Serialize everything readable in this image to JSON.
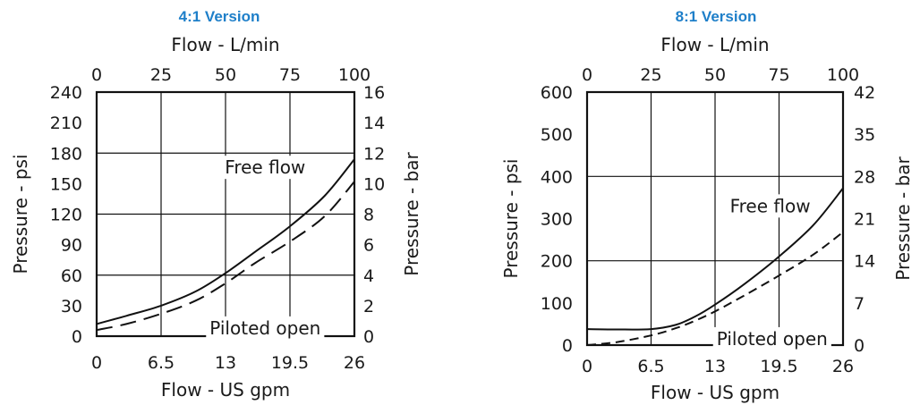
{
  "chart_data": [
    {
      "type": "line",
      "title": "4:1 Version",
      "xlabel": "Flow - US gpm",
      "ylabel": "Pressure - psi",
      "x2label": "Flow - L/min",
      "y2label": "Pressure - bar",
      "xlim": [
        0,
        26
      ],
      "ylim": [
        0,
        240
      ],
      "x2lim": [
        0,
        100
      ],
      "y2lim": [
        0,
        16
      ],
      "x_ticks": [
        "0",
        "6.5",
        "13",
        "19.5",
        "26"
      ],
      "y_ticks": [
        "0",
        "30",
        "60",
        "90",
        "120",
        "150",
        "180",
        "210",
        "240"
      ],
      "x2_ticks": [
        "0",
        "25",
        "50",
        "75",
        "100"
      ],
      "y2_ticks": [
        "0",
        "2",
        "4",
        "6",
        "8",
        "10",
        "12",
        "14",
        "16"
      ],
      "grid": true,
      "annotations": [
        {
          "text": "Free flow",
          "x": 17,
          "y": 166
        },
        {
          "text": "Piloted open",
          "x": 17,
          "y": 8
        }
      ],
      "series": [
        {
          "style": "solid",
          "x": [
            0,
            3,
            6.5,
            10,
            13,
            16,
            19.5,
            23,
            26
          ],
          "y": [
            12,
            20,
            30,
            44,
            62,
            83,
            108,
            138,
            174
          ]
        },
        {
          "style": "dashed",
          "x": [
            0,
            3,
            6.5,
            10,
            13,
            16,
            19.5,
            23,
            26
          ],
          "y": [
            6,
            12,
            22,
            35,
            52,
            72,
            93,
            118,
            152
          ]
        }
      ]
    },
    {
      "type": "line",
      "title": "8:1 Version",
      "xlabel": "Flow - US gpm",
      "ylabel": "Pressure - psi",
      "x2label": "Flow - L/min",
      "y2label": "Pressure - bar",
      "xlim": [
        0,
        26
      ],
      "ylim": [
        0,
        600
      ],
      "x2lim": [
        0,
        100
      ],
      "y2lim": [
        0,
        42
      ],
      "x_ticks": [
        "0",
        "6.5",
        "13",
        "19.5",
        "26"
      ],
      "y_ticks": [
        "0",
        "100",
        "200",
        "300",
        "400",
        "500",
        "600"
      ],
      "x2_ticks": [
        "0",
        "25",
        "50",
        "75",
        "100"
      ],
      "y2_ticks": [
        "0",
        "7",
        "14",
        "21",
        "28",
        "35",
        "42"
      ],
      "grid": true,
      "annotations": [
        {
          "text": "Free flow",
          "x": 18.6,
          "y": 330
        },
        {
          "text": "Piloted open",
          "x": 18.8,
          "y": 15
        }
      ],
      "series": [
        {
          "style": "solid",
          "x": [
            0,
            3,
            6.5,
            9,
            11,
            13,
            16,
            19.5,
            23,
            26
          ],
          "y": [
            38,
            37,
            38,
            48,
            68,
            96,
            145,
            210,
            285,
            372
          ]
        },
        {
          "style": "dashed",
          "x": [
            0,
            3,
            6.5,
            9,
            11,
            13,
            16,
            19.5,
            23,
            26
          ],
          "y": [
            0,
            7,
            23,
            40,
            58,
            80,
            118,
            165,
            215,
            268
          ]
        }
      ]
    }
  ]
}
